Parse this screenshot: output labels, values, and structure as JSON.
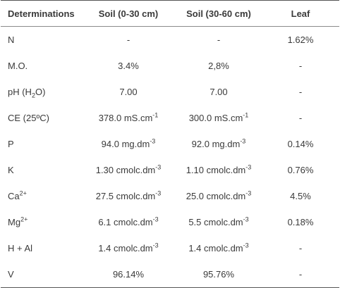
{
  "headers": [
    "Determinations",
    "Soil (0-30 cm)",
    "Soil (30-60 cm)",
    "Leaf"
  ],
  "rows": [
    {
      "name": {
        "base": "N"
      },
      "soil1": {
        "base": "-"
      },
      "soil2": {
        "base": "-"
      },
      "leaf": {
        "base": "1.62%"
      }
    },
    {
      "name": {
        "base": "M.O."
      },
      "soil1": {
        "base": "3.4%"
      },
      "soil2": {
        "base": "2,8%"
      },
      "leaf": {
        "base": "-"
      }
    },
    {
      "name": {
        "base": "pH (H",
        "sub": "2",
        "tail": "O)"
      },
      "soil1": {
        "base": "7.00"
      },
      "soil2": {
        "base": "7.00"
      },
      "leaf": {
        "base": "-"
      }
    },
    {
      "name": {
        "base": "CE (25ºC)"
      },
      "soil1": {
        "base": "378.0 mS.cm",
        "sup": "-1"
      },
      "soil2": {
        "base": "300.0 mS.cm",
        "sup": "-1"
      },
      "leaf": {
        "base": "-"
      }
    },
    {
      "name": {
        "base": "P"
      },
      "soil1": {
        "base": "94.0 mg.dm",
        "sup": "-3"
      },
      "soil2": {
        "base": "92.0 mg.dm",
        "sup": "-3"
      },
      "leaf": {
        "base": "0.14%"
      }
    },
    {
      "name": {
        "base": "K"
      },
      "soil1": {
        "base": "1.30 cmolc.dm",
        "sup": "-3"
      },
      "soil2": {
        "base": "1.10 cmolc.dm",
        "sup": "-3"
      },
      "leaf": {
        "base": "0.76%"
      }
    },
    {
      "name": {
        "base": "Ca",
        "sup": "2+"
      },
      "soil1": {
        "base": "27.5 cmolc.dm",
        "sup": "-3"
      },
      "soil2": {
        "base": "25.0 cmolc.dm",
        "sup": "-3"
      },
      "leaf": {
        "base": "4.5%"
      }
    },
    {
      "name": {
        "base": "Mg",
        "sup": "2+"
      },
      "soil1": {
        "base": "6.1 cmolc.dm",
        "sup": "-3"
      },
      "soil2": {
        "base": "5.5 cmolc.dm",
        "sup": "-3"
      },
      "leaf": {
        "base": "0.18%"
      }
    },
    {
      "name": {
        "base": "H + Al"
      },
      "soil1": {
        "base": "1.4 cmolc.dm",
        "sup": "-3"
      },
      "soil2": {
        "base": "1.4 cmolc.dm",
        "sup": "-3"
      },
      "leaf": {
        "base": "-"
      }
    },
    {
      "name": {
        "base": "V"
      },
      "soil1": {
        "base": "96.14%"
      },
      "soil2": {
        "base": "95.76%"
      },
      "leaf": {
        "base": "-"
      }
    }
  ]
}
